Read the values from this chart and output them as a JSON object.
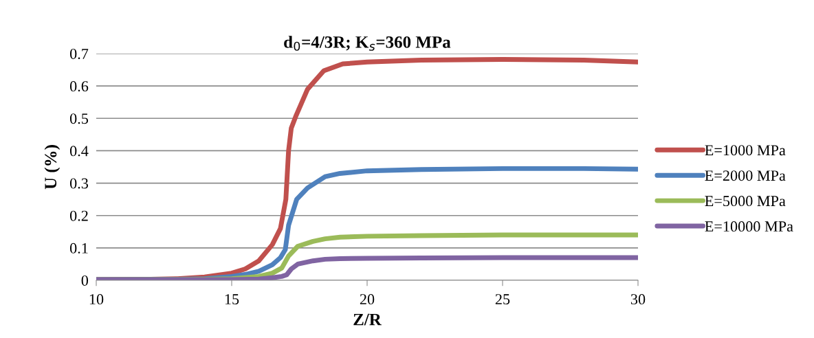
{
  "chart_data": {
    "type": "line",
    "title": "d$_{0}$=4/3R; K$_{s}$=360 MPa",
    "xlabel": "Z/R",
    "ylabel": "U (%)",
    "xlim": [
      10,
      30
    ],
    "xticks": [
      10,
      15,
      20,
      25,
      30
    ],
    "ylim": [
      0,
      0.7
    ],
    "yticks": [
      0,
      0.1,
      0.2,
      0.3,
      0.4,
      0.5,
      0.6,
      0.7
    ],
    "grid": "y",
    "legend": "right",
    "marker": "none",
    "line_style": "solid",
    "series": [
      {
        "name": "E=1000 MPa",
        "color": "#c0504d",
        "x": [
          10,
          12,
          13,
          14,
          15,
          15.5,
          16,
          16.5,
          16.8,
          17.0,
          17.1,
          17.2,
          17.36,
          17.8,
          18.4,
          19.1,
          20,
          22,
          25,
          28,
          30
        ],
        "values": [
          0.002,
          0.003,
          0.005,
          0.01,
          0.022,
          0.035,
          0.06,
          0.11,
          0.16,
          0.25,
          0.4,
          0.47,
          0.505,
          0.59,
          0.647,
          0.668,
          0.674,
          0.68,
          0.682,
          0.68,
          0.674
        ]
      },
      {
        "name": "E=2000 MPa",
        "color": "#4f81bd",
        "x": [
          10,
          13,
          14,
          15,
          15.5,
          16,
          16.5,
          16.8,
          16.98,
          17.1,
          17.4,
          17.8,
          18.45,
          19,
          20,
          22,
          25,
          28,
          30
        ],
        "values": [
          0.002,
          0.003,
          0.005,
          0.012,
          0.018,
          0.028,
          0.048,
          0.07,
          0.095,
          0.17,
          0.25,
          0.285,
          0.32,
          0.33,
          0.338,
          0.342,
          0.345,
          0.345,
          0.343
        ]
      },
      {
        "name": "E=5000 MPa",
        "color": "#9bbb59",
        "x": [
          10,
          14,
          15,
          16,
          16.5,
          16.85,
          17.1,
          17.44,
          18,
          18.45,
          19,
          20,
          22,
          25,
          30
        ],
        "values": [
          0.002,
          0.003,
          0.005,
          0.012,
          0.022,
          0.038,
          0.075,
          0.105,
          0.12,
          0.128,
          0.133,
          0.136,
          0.138,
          0.14,
          0.14
        ]
      },
      {
        "name": "E=10000 MPa",
        "color": "#8064a2",
        "x": [
          10,
          15,
          16,
          16.5,
          16.85,
          17.03,
          17.2,
          17.44,
          18,
          18.45,
          19,
          20,
          22,
          25,
          30
        ],
        "values": [
          0.002,
          0.002,
          0.004,
          0.008,
          0.012,
          0.017,
          0.035,
          0.05,
          0.06,
          0.065,
          0.067,
          0.068,
          0.069,
          0.07,
          0.07
        ]
      }
    ]
  }
}
